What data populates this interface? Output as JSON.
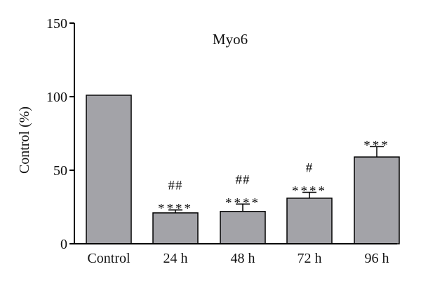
{
  "chart_data": {
    "type": "bar",
    "title": "Myo6",
    "ylabel": "Control (%)",
    "xlabel": "",
    "ylim": [
      0,
      150
    ],
    "yticks": [
      0,
      50,
      100,
      150
    ],
    "grid": false,
    "categories": [
      "Control",
      "24 h",
      "48 h",
      "72 h",
      "96 h"
    ],
    "values": [
      101,
      21,
      22,
      31,
      59
    ],
    "errors": [
      0,
      2,
      5,
      4,
      7
    ],
    "annotations": [
      {
        "category": "24 h",
        "lines": [
          "##",
          "****"
        ]
      },
      {
        "category": "48 h",
        "lines": [
          "##",
          "****"
        ]
      },
      {
        "category": "72 h",
        "lines": [
          "#",
          "****"
        ]
      },
      {
        "category": "96 h",
        "lines": [
          "***"
        ]
      }
    ],
    "bar_color": "#a3a3a8"
  }
}
